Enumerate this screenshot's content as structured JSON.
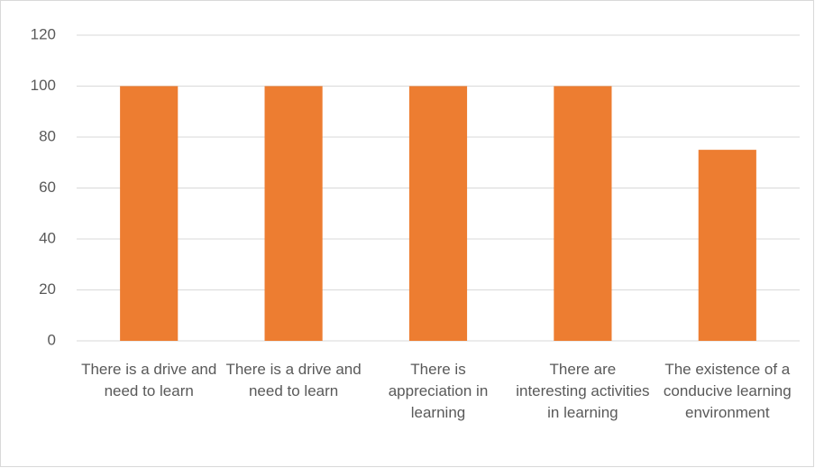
{
  "chart_data": {
    "type": "bar",
    "categories": [
      "There is a drive and need to learn",
      "There is a drive and need to learn",
      "There is appreciation in learning",
      "There are interesting activities in learning",
      "The existence of a conducive learning environment"
    ],
    "values": [
      100,
      100,
      100,
      100,
      75
    ],
    "color": "#ed7d31",
    "ylim": [
      0,
      120
    ],
    "yticks": [
      0,
      20,
      40,
      60,
      80,
      100,
      120
    ],
    "grid": true
  }
}
